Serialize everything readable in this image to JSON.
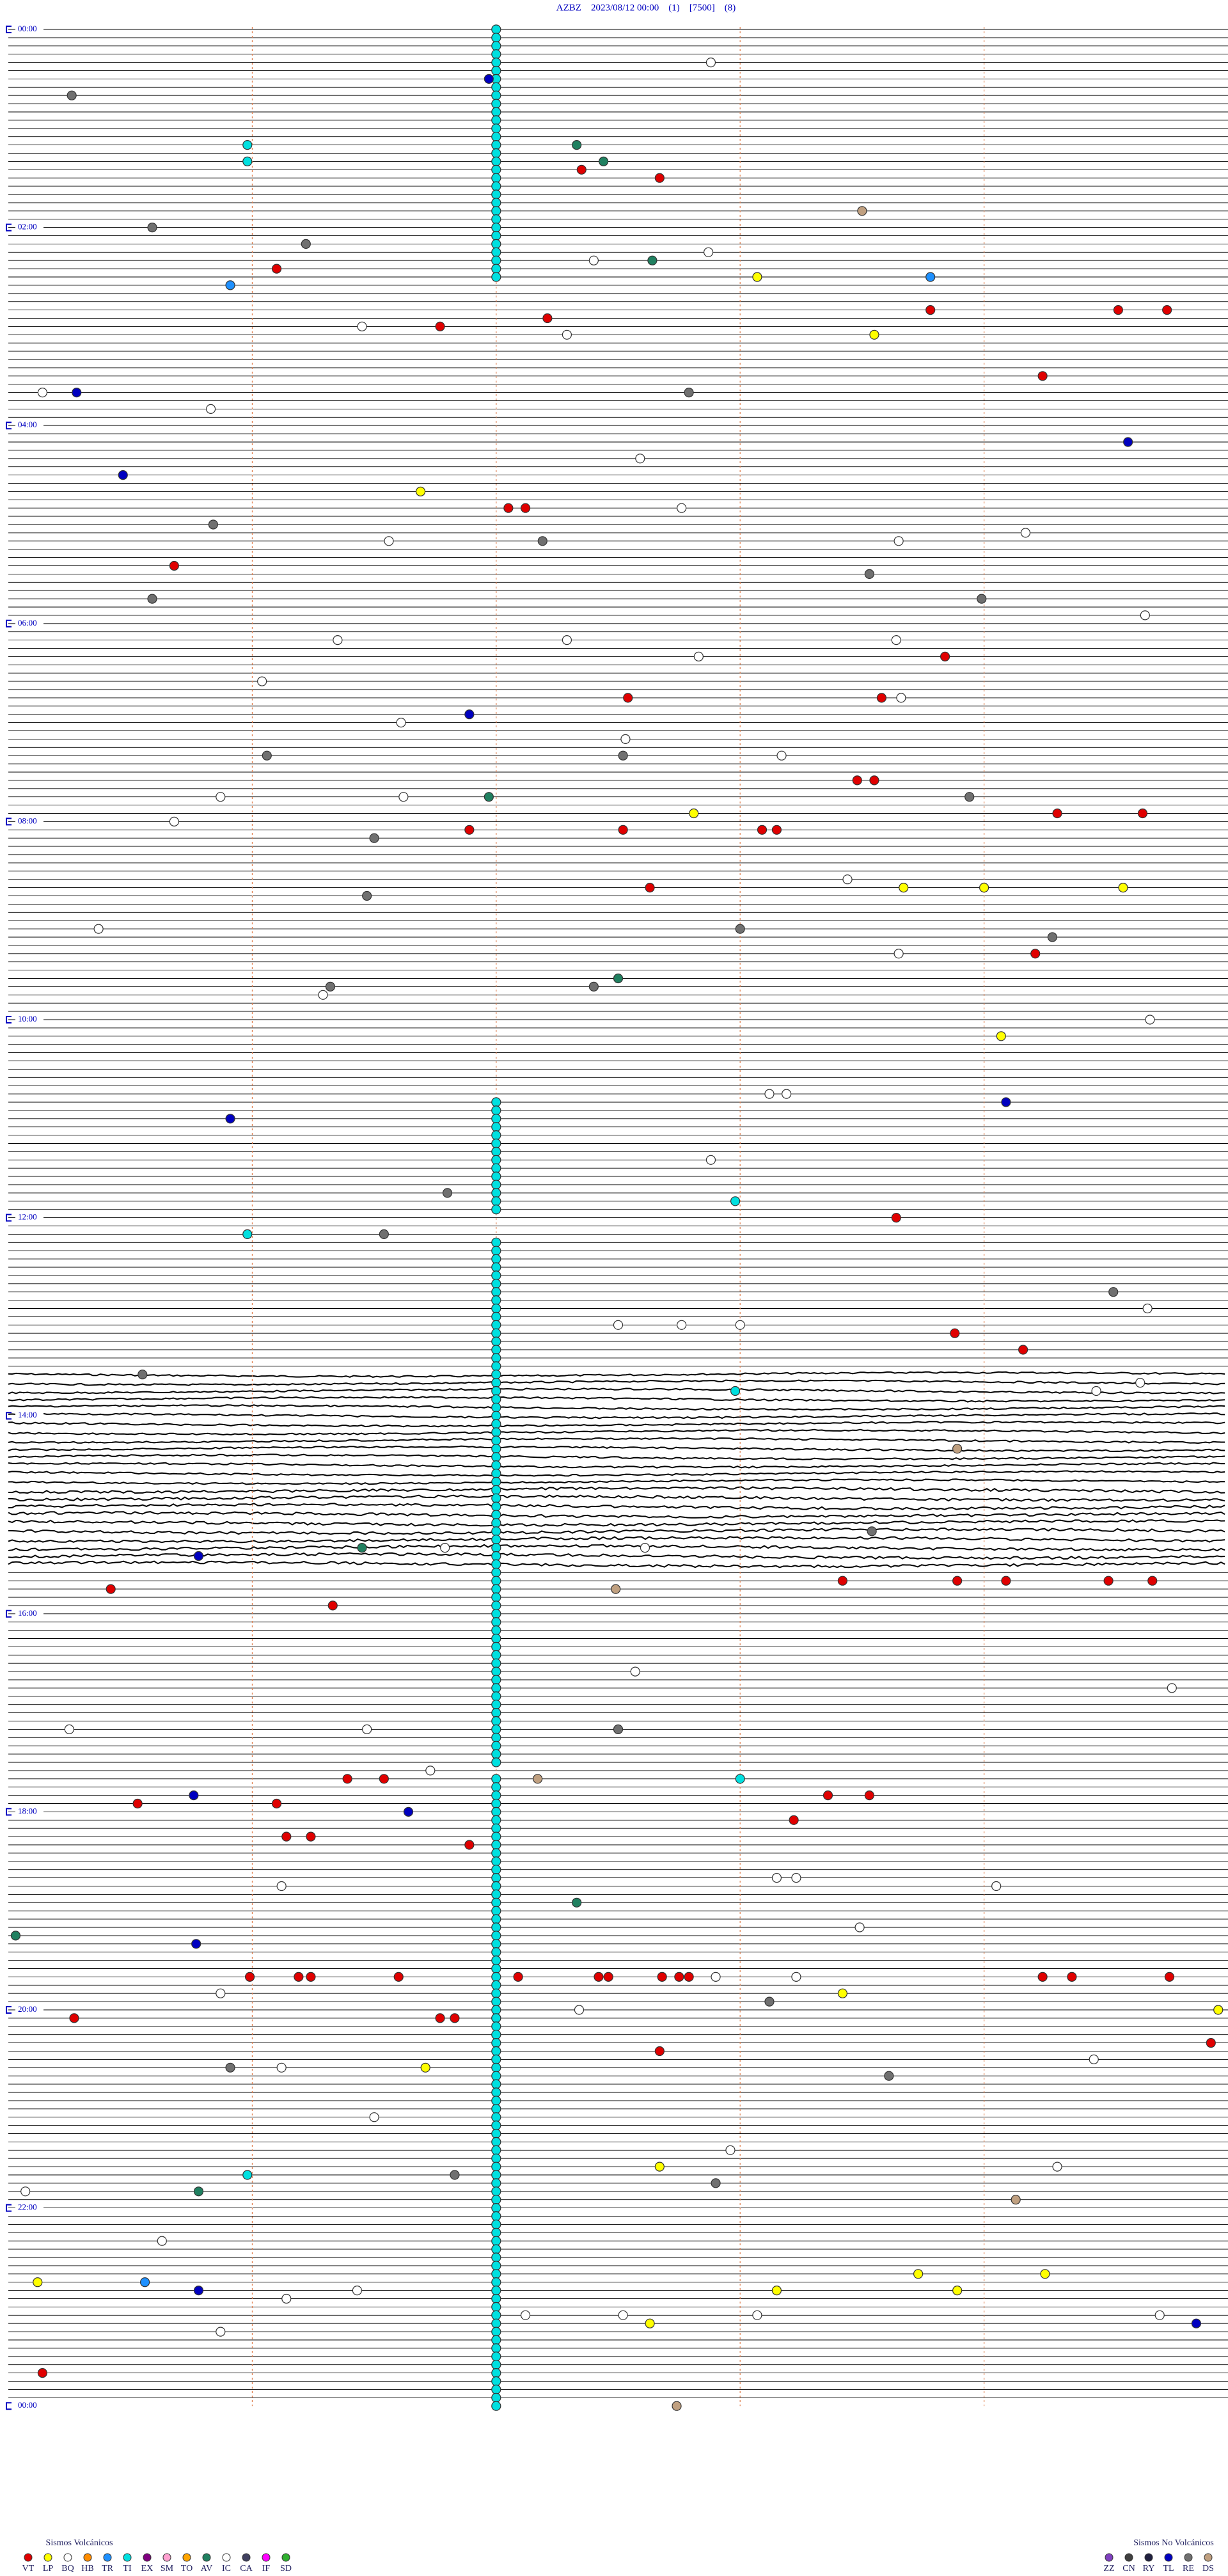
{
  "title": "AZBZ    2023/08/12 00:00    (1)    [7500]    (8)",
  "time_labels": [
    "00:00",
    "02:00",
    "04:00",
    "06:00",
    "08:00",
    "10:00",
    "12:00",
    "14:00",
    "16:00",
    "18:00",
    "20:00",
    "22:00",
    "00:00"
  ],
  "events": {
    "VT": [
      87.35,
      92.67,
      146.1,
      173.78,
      174.55,
      174.75,
      177.21,
      181.77,
      214.24,
      292.05,
      292.12,
      325.68,
      383.84,
      407.54,
      408.58,
      458.48,
      458.55,
      479.3,
      479.65,
      486.89,
      487.52,
      488.09,
      488.15,
      522.63,
      564.21,
      723.64,
      793.88,
      804.16,
      945.42,
      956.33,
      943.42,
      943.89,
      944.09,
      944.51,
      944.69,
      1061.39,
      1061.54,
      1073.36,
      1073.53,
      1075.53,
      1076.1,
      1088.22,
      1096.14,
      1096.24,
      1101.89,
      1180.99,
      1181.19,
      1181.24,
      1181.6,
      1182.09,
      1182.42,
      1182.46,
      1182.68,
      1182.75,
      1182.79,
      1184.24,
      1184.36,
      1184.76,
      1205.27,
      1206.77,
      1206.83,
      1207.0,
      1224.93,
      1227.67,
      1420.14
    ],
    "LP": [
      153.07,
      188.55,
      281.69,
      477.81,
      523.67,
      524.0,
      524.57,
      614.07,
      1193.42,
      1204.96,
      1236.71,
      1297.67,
      1365.12,
      1363.73,
      1373.89,
      1364.25,
      1373.15,
      1392.63
    ],
    "TR": [
      155.91,
      153.78,
      1365.56
    ],
    "TI": [
      2,
      7,
      12,
      17,
      22,
      27,
      32,
      37,
      42,
      47,
      52,
      57,
      62,
      67,
      72,
      77,
      82,
      87,
      92,
      97,
      102,
      107,
      112,
      117,
      122,
      127,
      132,
      137,
      142,
      147,
      152,
      652,
      657,
      662,
      667,
      672,
      677,
      682,
      687,
      692,
      697,
      702,
      707,
      712,
      717,
      737,
      742,
      747,
      752,
      757,
      762,
      767,
      772,
      777,
      782,
      787,
      792,
      797,
      802,
      807,
      812,
      817,
      822,
      827,
      832,
      837,
      842,
      847,
      852,
      857,
      862,
      867,
      872,
      877,
      882,
      887,
      892,
      897,
      902,
      907,
      912,
      917,
      922,
      927,
      932,
      937,
      942,
      947,
      952,
      957,
      962,
      967,
      972,
      977,
      982,
      987,
      992,
      997,
      1002,
      1007,
      1012,
      1017,
      1022,
      1027,
      1032,
      1037,
      1042,
      1047,
      1052,
      1062,
      1067,
      1072,
      1077,
      1082,
      1087,
      1092,
      1097,
      1102,
      1107,
      1112,
      1117,
      1122,
      1127,
      1132,
      1137,
      1142,
      1147,
      1152,
      1157,
      1162,
      1167,
      1172,
      1177,
      1182,
      1187,
      1192,
      1197,
      1202,
      1207,
      1212,
      1217,
      1222,
      1227,
      1232,
      1237,
      1242,
      1247,
      1252,
      1257,
      1262,
      1267,
      1272,
      1277,
      1282,
      1287,
      1292,
      1297,
      1302,
      1307,
      1312,
      1317,
      1322,
      1327,
      1332,
      1337,
      1342,
      1347,
      1352,
      1357,
      1362,
      1367,
      1372,
      1377,
      1382,
      1387,
      1392,
      1397,
      1402,
      1407,
      1412,
      1417,
      1422,
      1427,
      1432,
      1437,
      1442,
      70.98,
      80.98,
      712.98,
      730.98,
      827.98,
      1063.0,
      1300.98
    ],
    "AV": [
      72.33,
      82.44,
      142.64,
      466.97,
      577.5,
      921.45,
      1137.33,
      1155.03,
      1310.78
    ],
    "IC": [
      22.88,
      142.4,
      137.87,
      181.45,
      187.29,
      220.14,
      230.83,
      262.59,
      292.76,
      311.56,
      309.17,
      313.65,
      359.66,
      371.35,
      372.29,
      373.64,
      382.83,
      396.04,
      421.61,
      408.66,
      432.53,
      443.17,
      465.87,
      466.62,
      480.68,
      518.44,
      545.37,
      563.65,
      586.29,
      604.68,
      648.12,
      648.19,
      687.88,
      787.5,
      787.76,
      788.0,
      779.67,
      824.64,
      829.46,
      921.79,
      922.61,
      997.57,
      1009.77,
      1030.25,
      1031.47,
      1056.73,
      1123.15,
      1123.23,
      1126.12,
      1129.05,
      1153.49,
      1182.9,
      1183.23,
      1190.87,
      1202.34,
      1234.45,
      1236.12,
      1266.5,
      1287.96,
      1299.3,
      1310.07,
      1340.63,
      1376.14,
      1371.43,
      1387.12,
      1387.52,
      1388.07,
      1389.72,
      1395.87
    ],
    "TL": [
      31.97,
      220.28,
      254.59,
      270.47,
      416.89,
      654.09,
      660.91,
      925.78,
      1070.76,
      1081.64,
      1160.77,
      1370.78,
      1394.87
    ],
    "RE": [
      40.26,
      120.59,
      131.22,
      222.79,
      300.84,
      312.19,
      333.53,
      345.59,
      348.99,
      441.06,
      491.5,
      548.0,
      554.28,
      468.94,
      442.52,
      526.47,
      581.32,
      582.4,
      706.8,
      731.54,
      815.55,
      769.53,
      913.54,
      1032.5,
      1198.12,
      1235.91,
      1243.61,
      1301.83,
      1307.9
    ],
    "DS": [
      113.5,
      863.89,
      947.49,
      1062.17,
      1319.13,
      1442.74
    ]
  },
  "legend_volcanic": {
    "title": "Sismos Volcánicos",
    "items": [
      {
        "code": "VT",
        "color": "#e00000"
      },
      {
        "code": "LP",
        "color": "#ffff00"
      },
      {
        "code": "BQ",
        "color": "#ffffff"
      },
      {
        "code": "HB",
        "color": "#ff8c00"
      },
      {
        "code": "TR",
        "color": "#1e90ff"
      },
      {
        "code": "TI",
        "color": "#00e0e0"
      },
      {
        "code": "EX",
        "color": "#800080"
      },
      {
        "code": "SM",
        "color": "#ffa0d0"
      },
      {
        "code": "TO",
        "color": "#ffa500"
      },
      {
        "code": "AV",
        "color": "#208060"
      },
      {
        "code": "IC",
        "color": "#ffffff"
      },
      {
        "code": "CA",
        "color": "#404060"
      },
      {
        "code": "IF",
        "color": "#ff00ff"
      },
      {
        "code": "SD",
        "color": "#30b030"
      }
    ]
  },
  "legend_non_volcanic": {
    "title": "Sismos No Volcánicos",
    "items": [
      {
        "code": "ZZ",
        "color": "#8040c0"
      },
      {
        "code": "CN",
        "color": "#404040"
      },
      {
        "code": "RY",
        "color": "#202040"
      },
      {
        "code": "TL",
        "color": "#0000c0"
      },
      {
        "code": "RE",
        "color": "#707070"
      },
      {
        "code": "DS",
        "color": "#c0a080"
      }
    ]
  }
}
